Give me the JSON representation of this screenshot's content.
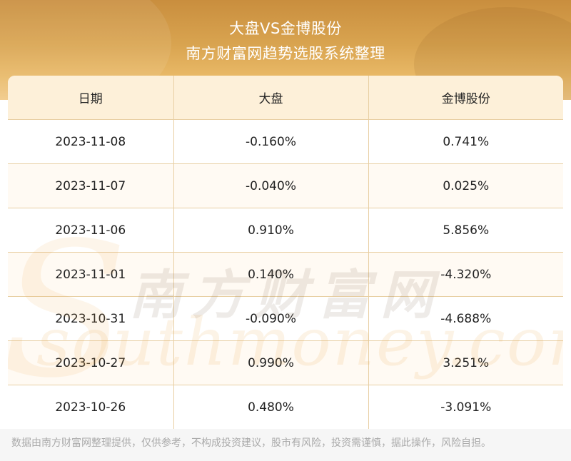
{
  "header": {
    "title": "大盘VS金博股份",
    "subtitle": "南方财富网趋势选股系统整理"
  },
  "table": {
    "columns": [
      "日期",
      "大盘",
      "金博股份"
    ],
    "rows": [
      {
        "date": "2023-11-08",
        "market": "-0.160%",
        "stock": "0.741%"
      },
      {
        "date": "2023-11-07",
        "market": "-0.040%",
        "stock": "0.025%"
      },
      {
        "date": "2023-11-06",
        "market": "0.910%",
        "stock": "5.856%"
      },
      {
        "date": "2023-11-01",
        "market": "0.140%",
        "stock": "-4.320%"
      },
      {
        "date": "2023-10-31",
        "market": "-0.090%",
        "stock": "-4.688%"
      },
      {
        "date": "2023-10-27",
        "market": "0.990%",
        "stock": "3.251%"
      },
      {
        "date": "2023-10-26",
        "market": "0.480%",
        "stock": "-3.091%"
      }
    ]
  },
  "watermark": {
    "chinese": "南方财富网",
    "english": "southmoney.com"
  },
  "footer": {
    "disclaimer": "数据由南方财富网整理提供，仅供参考，不构成投资建议，股市有风险，投资需谨慎，据此操作，风险自担。"
  }
}
